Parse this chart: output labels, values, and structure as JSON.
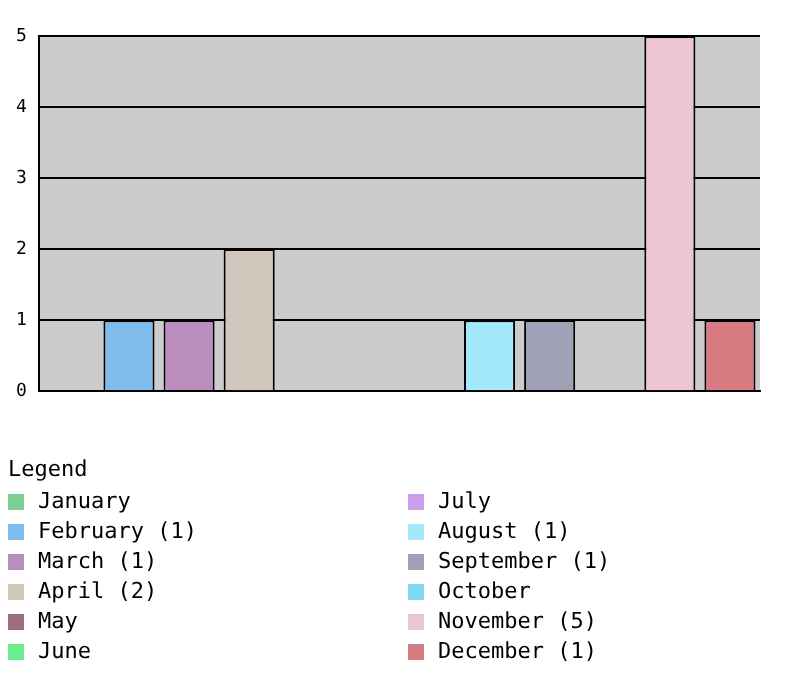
{
  "chart_data": {
    "type": "bar",
    "categories": [
      null
    ],
    "legend_title": "Legend",
    "legend": "bottom left",
    "grid": "y",
    "ylim": [
      0,
      5
    ],
    "yticks": [
      0,
      1,
      2,
      3,
      4,
      5
    ],
    "series": [
      {
        "name": "January",
        "color": "#7bd08f",
        "values": [
          0
        ]
      },
      {
        "name": "February (1)",
        "color": "#7fbcee",
        "values": [
          1
        ]
      },
      {
        "name": "March (1)",
        "color": "#bb8dbf",
        "values": [
          1
        ]
      },
      {
        "name": "April (2)",
        "color": "#d1c7bc",
        "values": [
          2
        ]
      },
      {
        "name": "May",
        "color": "#9c6e75",
        "values": [
          0
        ]
      },
      {
        "name": "June",
        "color": "#6ded8e",
        "values": [
          0
        ]
      },
      {
        "name": "July",
        "color": "#cc9eeb",
        "values": [
          0
        ]
      },
      {
        "name": "August (1)",
        "color": "#a2e9f9",
        "values": [
          1
        ]
      },
      {
        "name": "September (1)",
        "color": "#a0a1b7",
        "values": [
          1
        ]
      },
      {
        "name": "October",
        "color": "#7fd7f5",
        "values": [
          0
        ]
      },
      {
        "name": "November (5)",
        "color": "#ecc6d5",
        "values": [
          5
        ]
      },
      {
        "name": "December (1)",
        "color": "#d57b81",
        "values": [
          1
        ]
      }
    ]
  }
}
